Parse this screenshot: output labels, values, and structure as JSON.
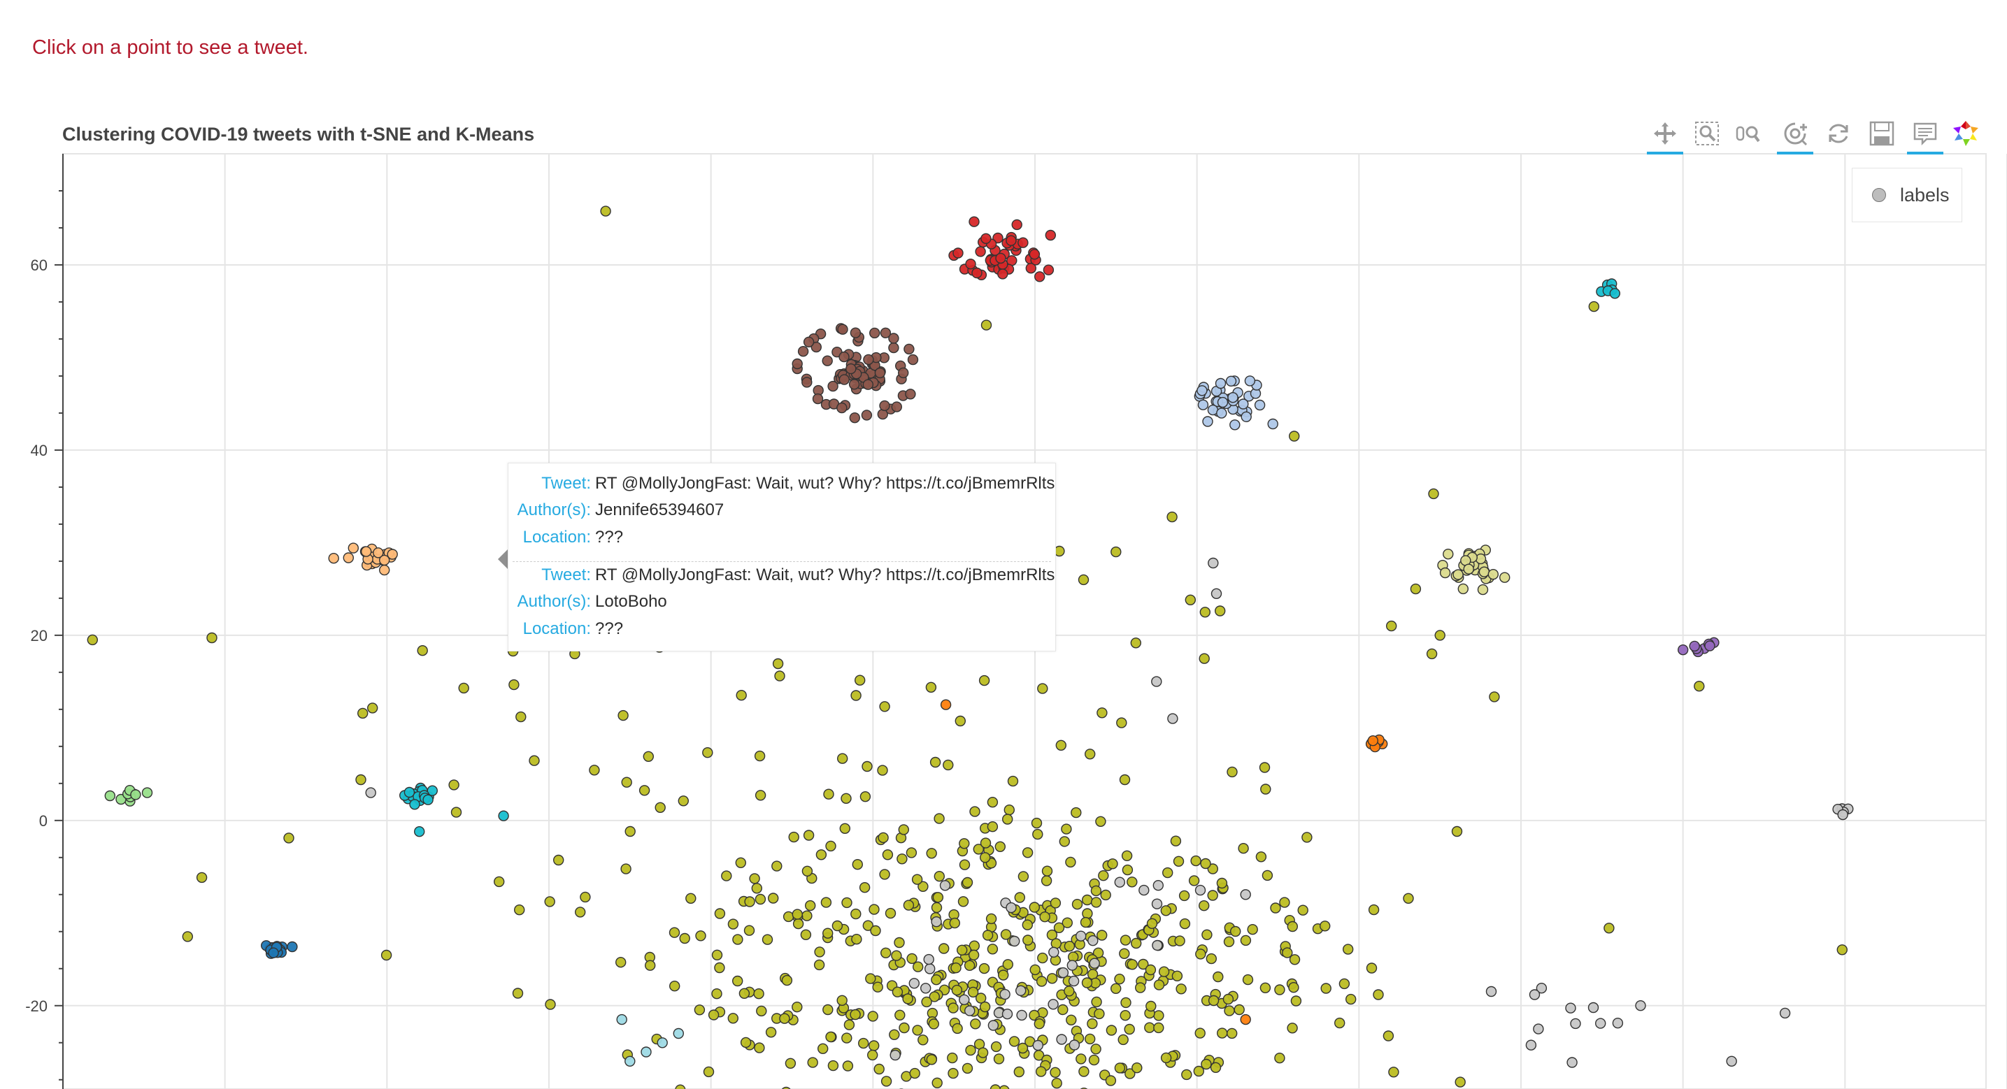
{
  "header_text": "Click on a point to see a tweet.",
  "toolbar": {
    "tools": [
      {
        "name": "pan-tool",
        "icon": "pan-icon",
        "active": true
      },
      {
        "name": "box-zoom-tool",
        "icon": "box-zoom-icon",
        "active": false
      },
      {
        "name": "wheel-zoom-tool",
        "icon": "wheel-zoom-icon",
        "active": false
      },
      {
        "name": "zoom-in-tool",
        "icon": "zoom-in-icon",
        "active": true
      },
      {
        "name": "reset-tool",
        "icon": "reset-icon",
        "active": false
      },
      {
        "name": "save-tool",
        "icon": "save-icon",
        "active": false
      },
      {
        "name": "hover-tool",
        "icon": "hover-icon",
        "active": true
      },
      {
        "name": "bokeh-logo",
        "icon": "bokeh-logo-icon",
        "active": false
      }
    ]
  },
  "tooltip": {
    "entries": [
      {
        "tweet_label": "Tweet:",
        "tweet": "RT @MollyJongFast: Wait, wut? Why? https://t.co/jBmemrRlts",
        "author_label": "Author(s):",
        "author": "Jennife65394607",
        "location_label": "Location:",
        "location": "???"
      },
      {
        "tweet_label": "Tweet:",
        "tweet": "RT @MollyJongFast: Wait, wut? Why? https://t.co/jBmemrRlts",
        "author_label": "Author(s):",
        "author": "LotoBoho",
        "location_label": "Location:",
        "location": "???"
      }
    ]
  },
  "chart_data": {
    "type": "scatter",
    "title": "Clustering COVID-19 tweets with t-SNE and K-Means",
    "xlabel": "",
    "ylabel": "",
    "xlim": [
      -50,
      70
    ],
    "ylim": [
      -29,
      72
    ],
    "yticks": [
      60,
      40,
      20,
      0,
      -20
    ],
    "grid": true,
    "legend": {
      "entries": [
        "labels"
      ],
      "placement": "top-right"
    },
    "colors": {
      "olive": "#bcbd22",
      "red": "#d62728",
      "brown": "#8c564b",
      "lightblue": "#aec7e8",
      "cyan": "#17becf",
      "khaki": "#dbdb8d",
      "purple": "#9467bd",
      "orange": "#ff7f0e",
      "green": "#98df8a",
      "teal": "#17becf",
      "blue": "#1f77b4",
      "peach": "#ffbb78",
      "pink": "#f7b6d2",
      "gray": "#c7c7c7",
      "skyblue": "#9edae5"
    },
    "clusters": [
      {
        "color": "olive",
        "cx": 10,
        "cy": -16,
        "sx": 10,
        "sy": 9,
        "n": 520
      },
      {
        "color": "olive",
        "cx": -9,
        "cy": 5,
        "sx": 18,
        "sy": 14,
        "n": 90
      },
      {
        "color": "red",
        "cx": 8,
        "cy": 61,
        "sx": 1.2,
        "sy": 1.2,
        "n": 45
      },
      {
        "color": "brown",
        "cx": -1,
        "cy": 48.5,
        "sx": 1.0,
        "sy": 1.1,
        "n": 55
      },
      {
        "color": "brown",
        "cx": -1,
        "cy": 48.5,
        "ring": true,
        "rx": 3.2,
        "ry": 4.3,
        "n": 36
      },
      {
        "color": "lightblue",
        "cx": 22,
        "cy": 45.5,
        "sx": 1.0,
        "sy": 1.3,
        "n": 40
      },
      {
        "color": "khaki",
        "cx": 37,
        "cy": 27.5,
        "sx": 0.9,
        "sy": 1.0,
        "n": 35
      },
      {
        "color": "purple",
        "cx": 51,
        "cy": 18.5,
        "sx": 0.5,
        "sy": 0.5,
        "n": 8
      },
      {
        "color": "orange",
        "cx": 31,
        "cy": 8.3,
        "sx": 0.3,
        "sy": 0.3,
        "n": 8
      },
      {
        "color": "green",
        "cx": -46,
        "cy": 2.8,
        "sx": 0.4,
        "sy": 0.4,
        "n": 8
      },
      {
        "color": "teal",
        "cx": -28,
        "cy": 2.7,
        "sx": 0.5,
        "sy": 0.6,
        "n": 20
      },
      {
        "color": "blue",
        "cx": -37,
        "cy": -13.8,
        "sx": 0.4,
        "sy": 0.4,
        "n": 16
      },
      {
        "color": "peach",
        "cx": -31,
        "cy": 28.5,
        "sx": 0.9,
        "sy": 0.8,
        "n": 22
      },
      {
        "color": "cyan",
        "cx": 45.5,
        "cy": 57.5,
        "sx": 0.25,
        "sy": 0.25,
        "n": 6
      },
      {
        "color": "gray",
        "cx": 60,
        "cy": 1,
        "sx": 0.2,
        "sy": 0.2,
        "n": 5
      },
      {
        "color": "gray",
        "cx": 42,
        "cy": -22,
        "sx": 2.5,
        "sy": 2.5,
        "n": 12
      },
      {
        "color": "gray",
        "cx": 10,
        "cy": -15,
        "sx": 5,
        "sy": 5,
        "n": 35
      }
    ],
    "points": [
      {
        "x": -16.5,
        "y": 65.8,
        "color": "olive"
      },
      {
        "x": 7,
        "y": 53.5,
        "color": "olive"
      },
      {
        "x": 26,
        "y": 41.5,
        "color": "olive"
      },
      {
        "x": 44.5,
        "y": 55.5,
        "color": "olive"
      },
      {
        "x": 6,
        "y": 33,
        "color": "pink"
      },
      {
        "x": 6.3,
        "y": 30.5,
        "color": "pink"
      },
      {
        "x": 13,
        "y": 26,
        "color": "olive"
      },
      {
        "x": 15,
        "y": 29,
        "color": "olive"
      },
      {
        "x": 8.5,
        "y": 24.5,
        "color": "olive"
      },
      {
        "x": 21,
        "y": 27.8,
        "color": "gray"
      },
      {
        "x": 21.2,
        "y": 24.5,
        "color": "gray"
      },
      {
        "x": 20.5,
        "y": 22.5,
        "color": "olive"
      },
      {
        "x": 33.5,
        "y": 25,
        "color": "olive"
      },
      {
        "x": 32,
        "y": 21,
        "color": "olive"
      },
      {
        "x": 35,
        "y": 20,
        "color": "olive"
      },
      {
        "x": 34.5,
        "y": 18,
        "color": "olive"
      },
      {
        "x": 51,
        "y": 14.5,
        "color": "olive"
      },
      {
        "x": -31,
        "y": 3,
        "color": "gray"
      },
      {
        "x": -28,
        "y": -1.2,
        "color": "teal"
      },
      {
        "x": -22.8,
        "y": 0.5,
        "color": "teal"
      },
      {
        "x": -44.8,
        "y": 3,
        "color": "green"
      },
      {
        "x": 4.5,
        "y": 12.5,
        "color": "orange"
      },
      {
        "x": 17.5,
        "y": 15,
        "color": "gray"
      },
      {
        "x": 18.5,
        "y": 11,
        "color": "gray"
      },
      {
        "x": 56.3,
        "y": -20.8,
        "color": "gray"
      },
      {
        "x": -15,
        "y": -26,
        "color": "skyblue"
      },
      {
        "x": -13,
        "y": -24,
        "color": "skyblue"
      },
      {
        "x": -14,
        "y": -25,
        "color": "skyblue"
      },
      {
        "x": -15.5,
        "y": -21.5,
        "color": "skyblue"
      },
      {
        "x": -12,
        "y": -23,
        "color": "skyblue"
      },
      {
        "x": 23,
        "y": -21.5,
        "color": "orange"
      },
      {
        "x": 23,
        "y": -8,
        "color": "gray"
      },
      {
        "x": 53,
        "y": -26,
        "color": "gray"
      }
    ]
  }
}
